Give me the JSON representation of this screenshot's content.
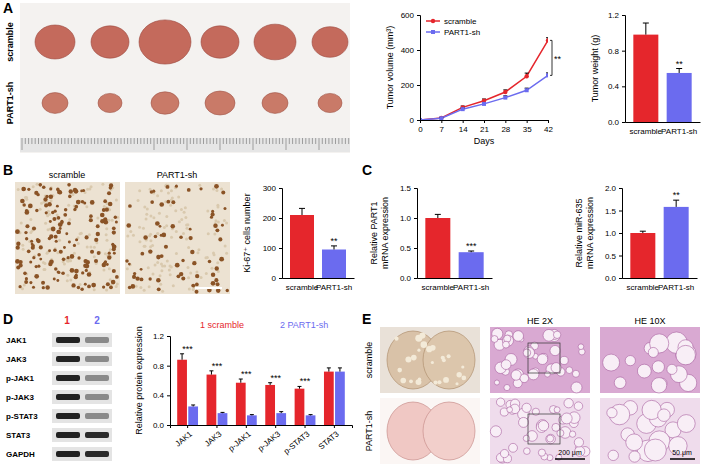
{
  "chart_data": [
    {
      "type": "line",
      "ylabel": "Tumor volume (mm³)",
      "xlabel": "Days",
      "x": [
        0,
        7,
        14,
        21,
        28,
        35,
        42
      ],
      "xlim": [
        0,
        42
      ],
      "xticks": [
        0,
        7,
        14,
        21,
        28,
        35,
        42
      ],
      "ylim": [
        0,
        600
      ],
      "yticks": [
        0,
        200,
        400,
        600
      ],
      "legend": "top-left",
      "annotation": "**",
      "series": [
        {
          "name": "scramble",
          "color": "#e5262c",
          "marker": "circle",
          "values": [
            0,
            12,
            72,
            110,
            160,
            250,
            455
          ],
          "errors": [
            0,
            3,
            8,
            10,
            12,
            18,
            15
          ]
        },
        {
          "name": "PART1-sh",
          "color": "#6b6bef",
          "marker": "square",
          "values": [
            0,
            10,
            62,
            92,
            128,
            170,
            255
          ],
          "errors": [
            0,
            3,
            6,
            8,
            10,
            12,
            14
          ]
        }
      ]
    },
    {
      "type": "bar",
      "ylabel": "Tumor weight (g)",
      "categories": [
        "scramble",
        "PART1-sh"
      ],
      "values": [
        0.98,
        0.55
      ],
      "errors": [
        0.13,
        0.05
      ],
      "colors": [
        "#e5262c",
        "#6b6bef"
      ],
      "ylim": [
        0,
        1.2
      ],
      "yticks": [
        {
          "value": 0,
          "label": "0.0"
        },
        0.4,
        0.8,
        1.2
      ],
      "annotations": [
        null,
        "**"
      ]
    },
    {
      "type": "bar",
      "ylabel": "Ki-67⁺ cells number",
      "categories": [
        "scramble",
        "PART1-sh"
      ],
      "values": [
        210,
        95
      ],
      "errors": [
        22,
        12
      ],
      "colors": [
        "#e5262c",
        "#6b6bef"
      ],
      "ylim": [
        0,
        300
      ],
      "yticks": [
        0,
        100,
        200,
        300
      ],
      "annotations": [
        null,
        "**"
      ]
    },
    {
      "type": "bar",
      "ylabel": [
        "Relative PART1",
        "mRNA expression"
      ],
      "categories": [
        "scramble",
        "PART1-sh"
      ],
      "values": [
        1.0,
        0.43
      ],
      "errors": [
        0.06,
        0.02
      ],
      "colors": [
        "#e5262c",
        "#6b6bef"
      ],
      "ylim": [
        0,
        1.5
      ],
      "yticks": [
        {
          "value": 0,
          "label": "0.0"
        },
        0.5,
        {
          "value": 1,
          "label": "1.0"
        },
        1.5
      ],
      "annotations": [
        null,
        "***"
      ]
    },
    {
      "type": "bar",
      "ylabel": [
        "Relative miR-635",
        "mRNA expression"
      ],
      "categories": [
        "scramble",
        "PART1-sh"
      ],
      "values": [
        1.0,
        1.58
      ],
      "errors": [
        0.04,
        0.15
      ],
      "colors": [
        "#e5262c",
        "#6b6bef"
      ],
      "ylim": [
        0,
        2
      ],
      "yticks": [
        {
          "value": 0,
          "label": "0.0"
        },
        0.5,
        {
          "value": 1,
          "label": "1.0"
        },
        1.5,
        {
          "value": 2,
          "label": "2.0"
        }
      ],
      "annotations": [
        null,
        "**"
      ]
    },
    {
      "type": "bar",
      "ylabel": "Relative protein expression",
      "categories": [
        "JAK1",
        "JAK3",
        "p-JAK1",
        "p-JAK3",
        "p-STAT3",
        "STAT3"
      ],
      "ylim": [
        0,
        1.2
      ],
      "yticks": [
        {
          "value": 0,
          "label": "0.0"
        },
        0.4,
        0.8,
        1.2
      ],
      "legend": "top",
      "annotations": [
        "***",
        "***",
        "***",
        "***",
        "***",
        null
      ],
      "series": [
        {
          "name": "1 scramble",
          "color": "#e5262c",
          "values": [
            0.88,
            0.68,
            0.57,
            0.54,
            0.49,
            0.72
          ],
          "errors": [
            0.08,
            0.05,
            0.05,
            0.03,
            0.03,
            0.05
          ]
        },
        {
          "name": "2 PART1-sh",
          "color": "#6b6bef",
          "values": [
            0.25,
            0.16,
            0.13,
            0.16,
            0.13,
            0.72
          ],
          "errors": [
            0.02,
            0.01,
            0.01,
            0.02,
            0.01,
            0.05
          ]
        }
      ]
    }
  ],
  "figure": {
    "panels": [
      "A",
      "B",
      "C",
      "D",
      "E"
    ],
    "A": {
      "row_labels": [
        "scramble",
        "PART1-sh"
      ]
    },
    "B": {
      "image_labels": [
        "scramble",
        "PART1-sh"
      ]
    },
    "D": {
      "lanes": [
        "1",
        "2"
      ],
      "blot_labels": [
        "JAK1",
        "JAK3",
        "p-JAK1",
        "p-JAK3",
        "p-STAT3",
        "STAT3",
        "GAPDH"
      ]
    },
    "E": {
      "row_labels": [
        "scramble",
        "PART1-sh"
      ],
      "column_labels": [
        "HE 2X",
        "HE 10X"
      ],
      "scale_bars": [
        "200 μm",
        "50 μm"
      ]
    }
  }
}
